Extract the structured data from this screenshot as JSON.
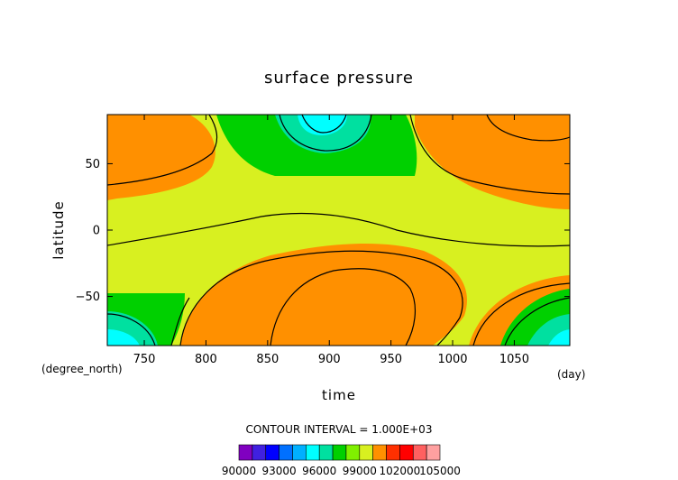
{
  "chart_data": {
    "type": "heatmap",
    "title": "surface pressure",
    "xlabel": "time",
    "ylabel": "latitude",
    "x_unit": "(day)",
    "y_unit": "(degree_north)",
    "xlim": [
      720,
      1095
    ],
    "ylim": [
      -87,
      87
    ],
    "x_ticks": [
      750,
      800,
      850,
      900,
      950,
      1000,
      1050
    ],
    "y_ticks": [
      50,
      0,
      -50
    ],
    "x_tick_labels": [
      "750",
      "800",
      "850",
      "900",
      "950",
      "1000",
      "1050"
    ],
    "y_tick_labels": [
      "50",
      "0",
      "−50"
    ],
    "contour_interval_text": "CONTOUR INTERVAL = 1.000E+03",
    "colorbar": {
      "levels": [
        90000,
        91000,
        92000,
        93000,
        94000,
        95000,
        96000,
        97000,
        98000,
        99000,
        100000,
        101000,
        102000,
        103000,
        104000,
        105000
      ],
      "labels": [
        "90000",
        "93000",
        "96000",
        "99000",
        "102000",
        "105000"
      ],
      "colors": [
        "#8000c0",
        "#4020e0",
        "#0000ff",
        "#0070ff",
        "#00b0ff",
        "#00ffff",
        "#00e0a0",
        "#00d000",
        "#80f000",
        "#d8f020",
        "#ff9000",
        "#ff3000",
        "#ff0000",
        "#ff6060",
        "#ffa0a0"
      ]
    },
    "regions": [
      {
        "level": "101000-102000",
        "color": "#ff9000",
        "desc": "high pressure lobes near poles"
      },
      {
        "level": "100000-101000",
        "color": "#d8f020"
      },
      {
        "level": "99000-100000",
        "color": "#80f000"
      },
      {
        "level": "98000-99000",
        "color": "#00d000"
      },
      {
        "level": "97000-98000",
        "color": "#00e0a0"
      },
      {
        "level": "96000-97000",
        "color": "#00ffff"
      }
    ]
  }
}
